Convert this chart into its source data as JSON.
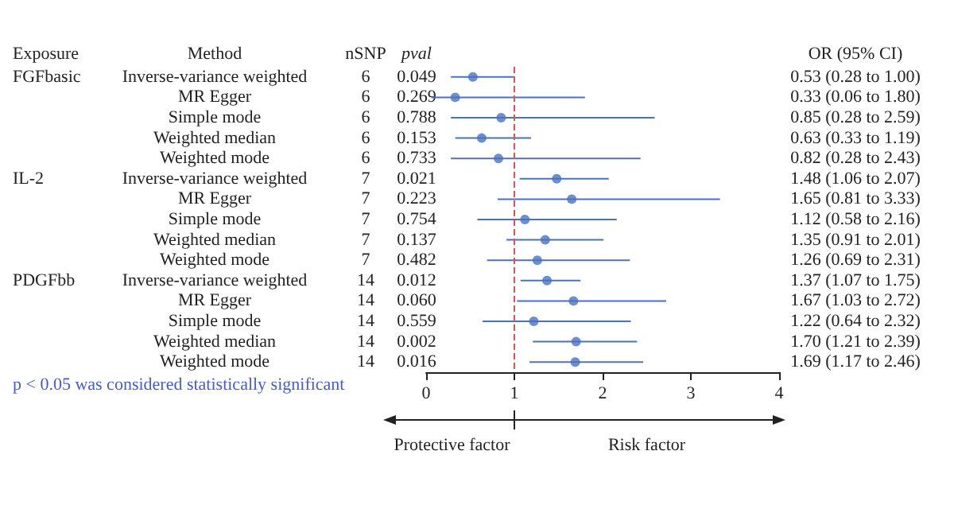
{
  "chart_data": {
    "type": "scatter",
    "orientation": "horizontal",
    "categories": [
      "Inverse-variance weighted",
      "MR Egger",
      "Simple mode",
      "Weighted median",
      "Weighted mode",
      "Inverse-variance weighted",
      "MR Egger",
      "Simple mode",
      "Weighted median",
      "Weighted mode",
      "Inverse-variance weighted",
      "MR Egger",
      "Simple mode",
      "Weighted median",
      "Weighted mode"
    ],
    "values": [
      0.53,
      0.33,
      0.85,
      0.63,
      0.82,
      1.48,
      1.65,
      1.12,
      1.35,
      1.26,
      1.37,
      1.67,
      1.22,
      1.7,
      1.69
    ],
    "errors": [
      [
        0.28,
        1.0
      ],
      [
        0.06,
        1.8
      ],
      [
        0.28,
        2.59
      ],
      [
        0.33,
        1.19
      ],
      [
        0.28,
        2.43
      ],
      [
        1.06,
        2.07
      ],
      [
        0.81,
        3.33
      ],
      [
        0.58,
        2.16
      ],
      [
        0.91,
        2.01
      ],
      [
        0.69,
        2.31
      ],
      [
        1.07,
        1.75
      ],
      [
        1.03,
        2.72
      ],
      [
        0.64,
        2.32
      ],
      [
        1.21,
        2.39
      ],
      [
        1.17,
        2.46
      ]
    ],
    "value_labels": [
      "0.53 (0.28 to 1.00)",
      "0.33 (0.06 to 1.80)",
      "0.85 (0.28 to 2.59)",
      "0.63 (0.33 to 1.19)",
      "0.82 (0.28 to 2.43)",
      "1.48 (1.06 to 2.07)",
      "1.65 (0.81 to 3.33)",
      "1.12 (0.58 to 2.16)",
      "1.35 (0.91 to 2.01)",
      "1.26 (0.69 to 2.31)",
      "1.37 (1.07 to 1.75)",
      "1.67 (1.03 to 2.72)",
      "1.22 (0.64 to 2.32)",
      "1.70 (1.21 to 2.39)",
      "1.69 (1.17 to 2.46)"
    ],
    "color": "#4a72c0",
    "marker": "circle",
    "xlim": [
      0,
      4
    ],
    "xticks": [
      0,
      1,
      2,
      3,
      4
    ],
    "grid": false,
    "ref_lines": [
      {
        "axis": "x",
        "value": 1,
        "color": "#d9534f",
        "line_style": "dashed"
      }
    ],
    "annotations": [
      "Exposure",
      "Method",
      "nSNP",
      "pval",
      "OR (95% CI)",
      "FGFbasic",
      "IL-2",
      "PDGFbb",
      "6",
      "6",
      "6",
      "6",
      "6",
      "7",
      "7",
      "7",
      "7",
      "7",
      "14",
      "14",
      "14",
      "14",
      "14",
      "0.049",
      "0.269",
      "0.788",
      "0.153",
      "0.733",
      "0.021",
      "0.223",
      "0.754",
      "0.137",
      "0.482",
      "0.012",
      "0.060",
      "0.559",
      "0.002",
      "0.016",
      "p < 0.05 was considered statistically significant",
      "Protective factor",
      "Risk factor"
    ]
  }
}
